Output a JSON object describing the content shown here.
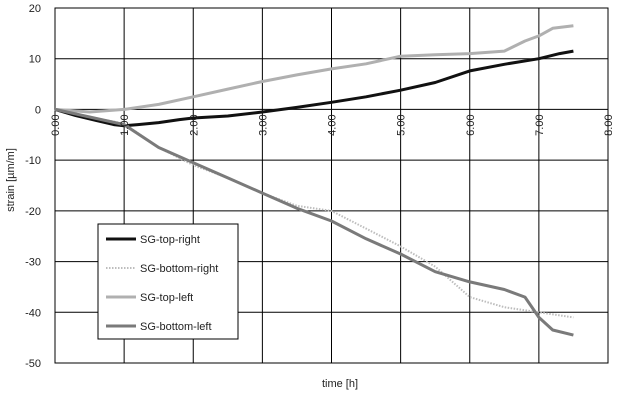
{
  "chart_data": {
    "type": "line",
    "xlabel": "time [h]",
    "ylabel": "strain [µm/m]",
    "xlim": [
      0,
      8
    ],
    "ylim": [
      -50,
      20
    ],
    "x_ticks": [
      0,
      1,
      2,
      3,
      4,
      5,
      6,
      7,
      8
    ],
    "x_tick_labels": [
      "0.00",
      "1.00",
      "2.00",
      "3.00",
      "4.00",
      "5.00",
      "6.00",
      "7.00",
      "8.00"
    ],
    "y_ticks": [
      20,
      10,
      0,
      -10,
      -20,
      -30,
      -40,
      -50
    ],
    "y_tick_labels": [
      "20",
      "10",
      "0",
      "-10",
      "-20",
      "-30",
      "-40",
      "-50"
    ],
    "grid": true,
    "legend_position": "bottom-left",
    "series": [
      {
        "name": "SG-top-right",
        "color": "#111111",
        "style": "solid",
        "x": [
          0,
          0.3,
          0.6,
          0.85,
          1.0,
          1.2,
          1.5,
          1.8,
          2.0,
          2.5,
          3.0,
          3.5,
          4.0,
          4.5,
          5.0,
          5.5,
          6.0,
          6.5,
          7.0,
          7.3,
          7.5
        ],
        "y": [
          0,
          -1.2,
          -2.2,
          -3.0,
          -3.2,
          -3.0,
          -2.6,
          -2.0,
          -1.7,
          -1.3,
          -0.5,
          0.4,
          1.4,
          2.5,
          3.8,
          5.3,
          7.6,
          8.9,
          10.0,
          11.0,
          11.5
        ]
      },
      {
        "name": "SG-bottom-right",
        "color": "#bdbdbd",
        "style": "dotted",
        "x": [
          0,
          0.5,
          1.0,
          1.5,
          2.0,
          2.5,
          3.0,
          3.5,
          4.0,
          4.5,
          5.0,
          5.5,
          6.0,
          6.5,
          7.0,
          7.5
        ],
        "y": [
          0,
          -1.5,
          -2.8,
          -7.5,
          -11.0,
          -13.5,
          -16.5,
          -19.0,
          -20.0,
          -23.5,
          -27.0,
          -31.0,
          -37.0,
          -39.0,
          -40.0,
          -41.0
        ]
      },
      {
        "name": "SG-top-left",
        "color": "#b0b0b0",
        "style": "solid",
        "x": [
          0,
          0.5,
          1.0,
          1.5,
          2.0,
          2.5,
          3.0,
          3.5,
          4.0,
          4.5,
          5.0,
          5.5,
          6.0,
          6.5,
          6.8,
          7.0,
          7.2,
          7.5
        ],
        "y": [
          0,
          -0.5,
          0,
          1.0,
          2.5,
          4.0,
          5.5,
          6.8,
          8.0,
          9.0,
          10.5,
          10.8,
          11.0,
          11.5,
          13.5,
          14.5,
          16.0,
          16.5
        ]
      },
      {
        "name": "SG-bottom-left",
        "color": "#7a7a7a",
        "style": "solid",
        "x": [
          0,
          0.5,
          1.0,
          1.5,
          2.0,
          2.5,
          3.0,
          3.5,
          4.0,
          4.5,
          5.0,
          5.5,
          6.0,
          6.5,
          6.8,
          7.0,
          7.2,
          7.5
        ],
        "y": [
          0,
          -1.5,
          -3.0,
          -7.5,
          -10.5,
          -13.5,
          -16.5,
          -19.5,
          -22.0,
          -25.5,
          -28.5,
          -32.0,
          -34.0,
          -35.5,
          -37.0,
          -41.0,
          -43.5,
          -44.5
        ]
      }
    ]
  }
}
